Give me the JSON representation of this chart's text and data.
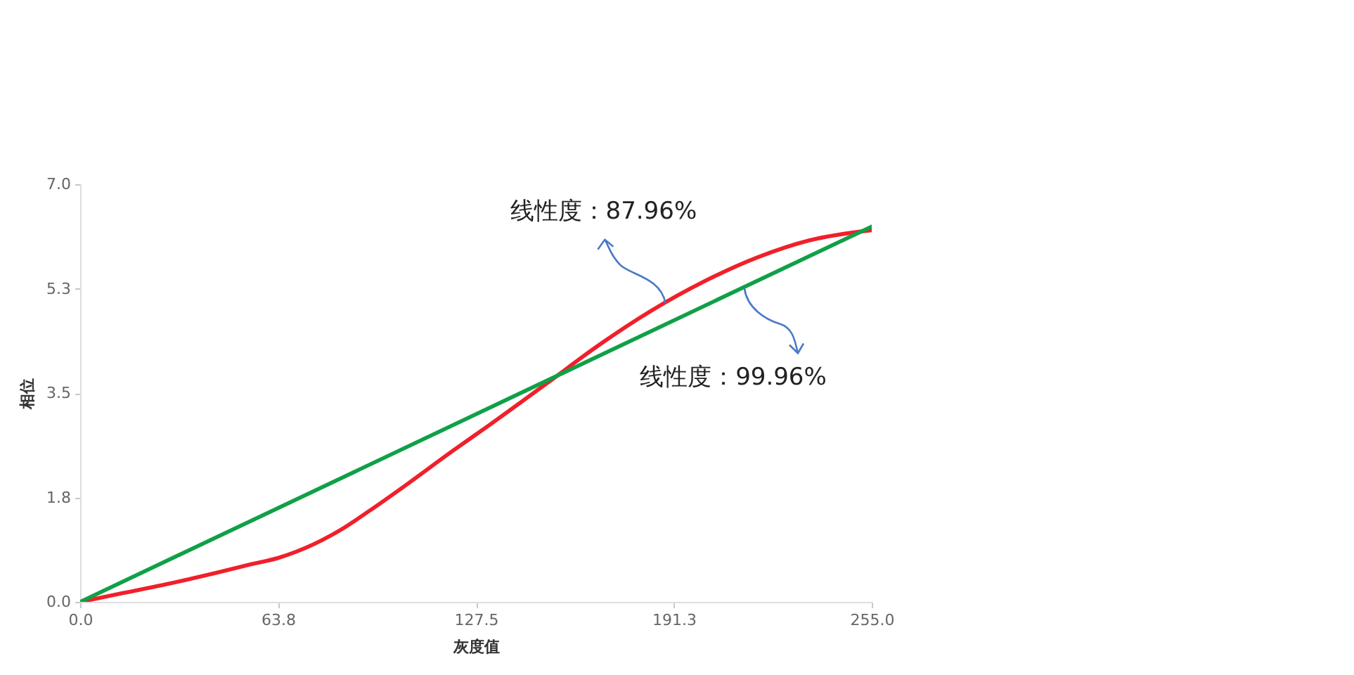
{
  "chart_data": {
    "type": "line",
    "xlabel": "灰度值",
    "ylabel": "相位",
    "xlim": [
      0,
      255
    ],
    "ylim": [
      0,
      7
    ],
    "xticks": [
      {
        "value": 0,
        "label": "0.0"
      },
      {
        "value": 63.75,
        "label": "63.8"
      },
      {
        "value": 127.5,
        "label": "127.5"
      },
      {
        "value": 191.25,
        "label": "191.3"
      },
      {
        "value": 255,
        "label": "255.0"
      }
    ],
    "yticks": [
      {
        "value": 0,
        "label": "0.0"
      },
      {
        "value": 1.75,
        "label": "1.8"
      },
      {
        "value": 3.5,
        "label": "3.5"
      },
      {
        "value": 5.25,
        "label": "5.3"
      },
      {
        "value": 7,
        "label": "7.0"
      }
    ],
    "grid": false,
    "marker": "none",
    "line_style": "solid",
    "series": [
      {
        "color": "#f0202a",
        "x": [
          0,
          14,
          29,
          44,
          55,
          64,
          75,
          84,
          93,
          105,
          120,
          132,
          150,
          167,
          184,
          201,
          218,
          235,
          255
        ],
        "values": [
          0,
          0.15,
          0.31,
          0.49,
          0.63,
          0.74,
          0.96,
          1.21,
          1.52,
          1.96,
          2.53,
          2.97,
          3.65,
          4.3,
          4.88,
          5.37,
          5.77,
          6.06,
          6.23
        ]
      },
      {
        "color": "#10a048",
        "x": [
          0,
          255
        ],
        "values": [
          0,
          6.29
        ]
      }
    ],
    "annotations": [
      {
        "text": "线性度：87.96%",
        "x": 188.5,
        "y": 5.01
      },
      {
        "text": "线性度：99.96%",
        "x": 214,
        "y": 5.25
      }
    ]
  }
}
